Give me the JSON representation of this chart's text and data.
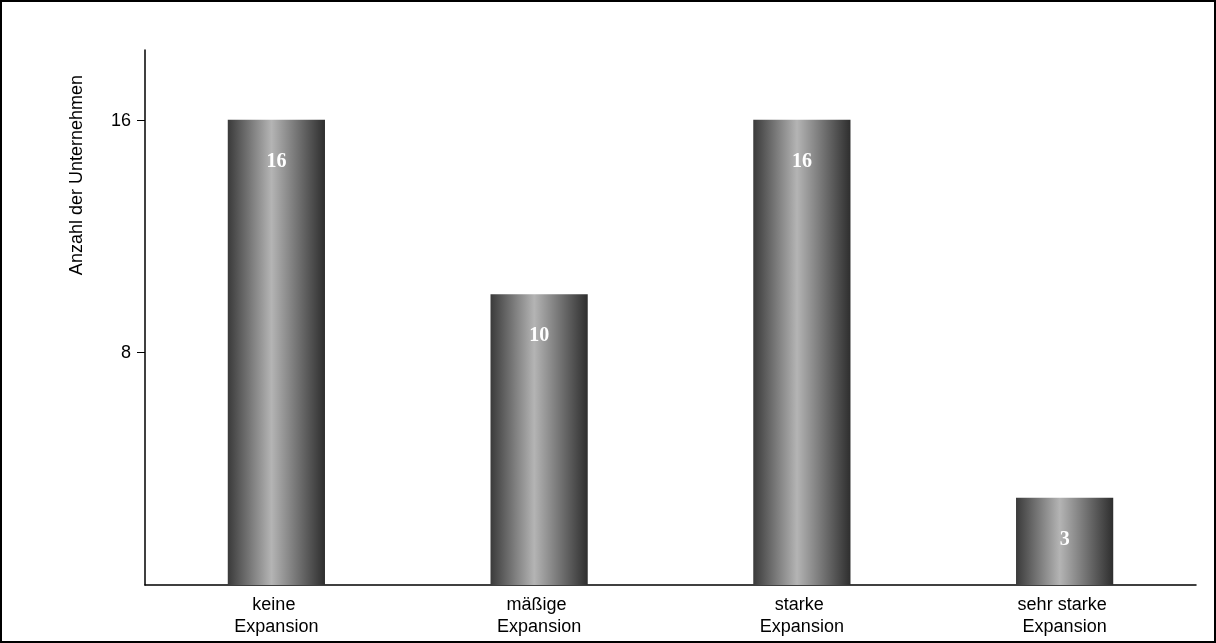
{
  "chart_data": {
    "type": "bar",
    "ylabel": "Anzahl der Unternehmen",
    "categories": [
      "keine Expansion",
      "mäßige Expansion",
      "starke Expansion",
      "sehr starke Expansion"
    ],
    "values": [
      16,
      10,
      16,
      3
    ],
    "color": "#b4b4b4",
    "ylim": [
      0,
      18.4
    ],
    "yticks": [
      8,
      16
    ],
    "grid": false,
    "data_labels": true
  }
}
